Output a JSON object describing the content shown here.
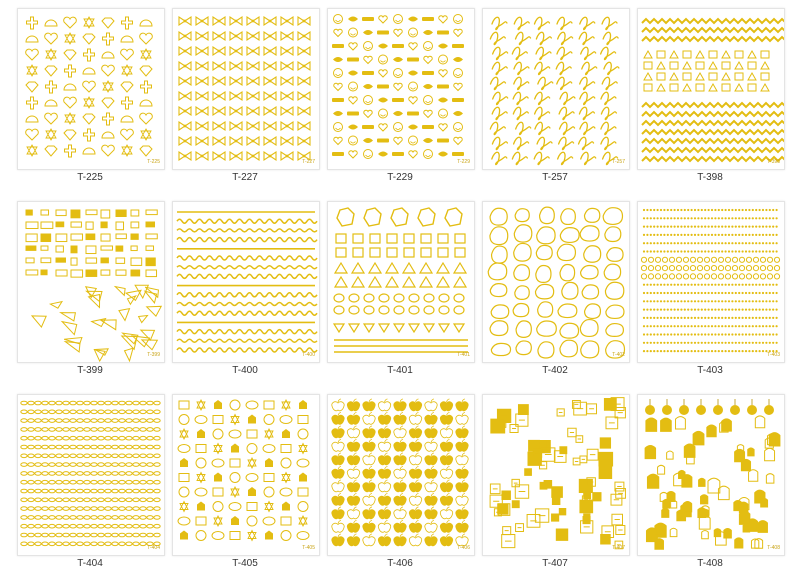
{
  "colors": {
    "gold": "#e3bd12",
    "gold_dark": "#b8930a",
    "paper": "#ffffff",
    "caption": "#333333"
  },
  "sheets": [
    {
      "code": "T-225",
      "pattern": "icons-cross-shell-heart-star-diamond"
    },
    {
      "code": "T-227",
      "pattern": "bows"
    },
    {
      "code": "T-229",
      "pattern": "smiles-lips-words"
    },
    {
      "code": "T-257",
      "pattern": "script-swirls"
    },
    {
      "code": "T-398",
      "pattern": "zigzag-geometric"
    },
    {
      "code": "T-399",
      "pattern": "geometric-shards"
    },
    {
      "code": "T-400",
      "pattern": "wavy-lines"
    },
    {
      "code": "T-401",
      "pattern": "geometric-outlines"
    },
    {
      "code": "T-402",
      "pattern": "pebbles"
    },
    {
      "code": "T-403",
      "pattern": "beaded-lines"
    },
    {
      "code": "T-404",
      "pattern": "chains"
    },
    {
      "code": "T-405",
      "pattern": "mixed-symbols"
    },
    {
      "code": "T-406",
      "pattern": "apples"
    },
    {
      "code": "T-407",
      "pattern": "ornaments"
    },
    {
      "code": "T-408",
      "pattern": "ornaments-lanterns"
    }
  ]
}
